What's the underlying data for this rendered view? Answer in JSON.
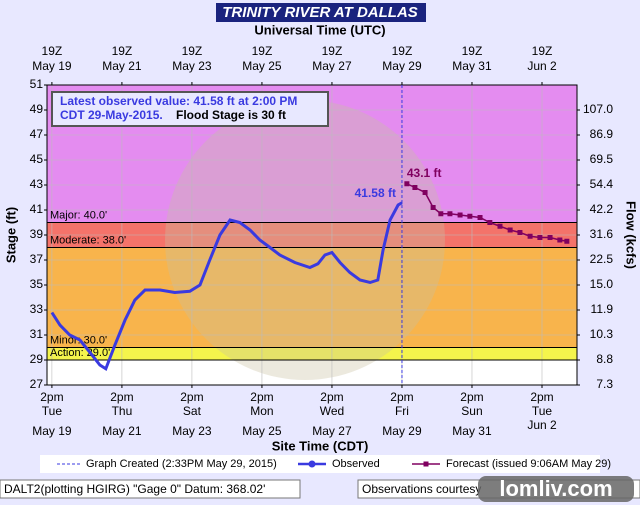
{
  "chart_data": {
    "type": "line",
    "title": "TRINITY RIVER AT DALLAS",
    "top_axis_title": "Universal Time (UTC)",
    "x_axis_title": "Site Time (CDT)",
    "y_axis_title": "Stage (ft)",
    "y2_axis_title": "Flow (kcfs)",
    "xlim": [
      -0.14,
      15.0
    ],
    "xticks": [
      {
        "value": 0,
        "label": "2pm"
      },
      {
        "value": 2,
        "label": "2pm"
      },
      {
        "value": 4,
        "label": "2pm"
      },
      {
        "value": 6,
        "label": "2pm"
      },
      {
        "value": 8,
        "label": "2pm"
      },
      {
        "value": 10,
        "label": "2pm"
      },
      {
        "value": 12,
        "label": "2pm"
      },
      {
        "value": 14,
        "label": "2pm"
      }
    ],
    "xtick_days": [
      "Tue",
      "Thu",
      "Sat",
      "Mon",
      "Wed",
      "Fri",
      "Sun",
      "Tue"
    ],
    "xtick_dates": [
      "May 19",
      "May 21",
      "May 23",
      "May 25",
      "May 27",
      "May 29",
      "May 31",
      "Jun 2"
    ],
    "top_tick_label": "19Z",
    "ylim": [
      27,
      51
    ],
    "yticks": [
      27,
      29,
      31,
      33,
      35,
      37,
      39,
      41,
      43,
      45,
      47,
      49,
      51
    ],
    "y2ticks": [
      {
        "value": 7.3,
        "label": "7.3"
      },
      {
        "value": 8.8,
        "label": "8.8"
      },
      {
        "value": 10.3,
        "label": "10.3"
      },
      {
        "value": 11.9,
        "label": "11.9"
      },
      {
        "value": 15.0,
        "label": "15.0"
      },
      {
        "value": 22.5,
        "label": "22.5"
      },
      {
        "value": 31.6,
        "label": "31.6"
      },
      {
        "value": 42.2,
        "label": "42.2"
      },
      {
        "value": 54.4,
        "label": "54.4"
      },
      {
        "value": 69.5,
        "label": "69.5"
      },
      {
        "value": 86.9,
        "label": "86.9"
      },
      {
        "value": 107.0,
        "label": "107.0"
      }
    ],
    "grid": true,
    "flood_categories": [
      {
        "label": "Major: 40.0'",
        "value": 40,
        "color": "#e48cf0"
      },
      {
        "label": "Moderate: 38.0'",
        "value": 38,
        "color": "#f4736a"
      },
      {
        "label": "Minor: 30.0'",
        "value": 30,
        "color": "#f8b44c"
      },
      {
        "label": "Action: 29.0'",
        "value": 29,
        "color": "#f4f44c"
      }
    ],
    "created_x": 10.0,
    "series": [
      {
        "name": "Observed",
        "color": "#3a3ae0",
        "marker": "circle",
        "x": [
          0,
          0.23,
          0.51,
          0.8,
          1.09,
          1.37,
          1.54,
          1.8,
          2.09,
          2.37,
          2.66,
          3.09,
          3.51,
          3.94,
          4.23,
          4.51,
          4.8,
          5.09,
          5.37,
          5.66,
          5.94,
          6.23,
          6.51,
          6.94,
          7.37,
          7.6,
          7.8,
          8.0,
          8.23,
          8.51,
          8.8,
          9.09,
          9.31,
          9.46,
          9.66,
          9.89,
          10.0
        ],
        "values": [
          32.8,
          31.8,
          31.0,
          30.6,
          29.6,
          28.6,
          28.3,
          30.2,
          32.2,
          33.8,
          34.6,
          34.6,
          34.4,
          34.5,
          35.0,
          37.0,
          39.0,
          40.2,
          40.0,
          39.4,
          38.6,
          38.0,
          37.4,
          36.8,
          36.4,
          36.7,
          37.4,
          37.6,
          36.8,
          36.0,
          35.4,
          35.2,
          35.4,
          37.8,
          40.2,
          41.4,
          41.58
        ]
      },
      {
        "name": "Forecast (issued 9:06AM May 29)",
        "color": "#800060",
        "marker": "square",
        "x": [
          10.14,
          10.37,
          10.66,
          10.89,
          11.11,
          11.37,
          11.66,
          11.94,
          12.23,
          12.51,
          12.8,
          13.09,
          13.37,
          13.66,
          13.94,
          14.23,
          14.51,
          14.71
        ],
        "values": [
          43.1,
          42.8,
          42.4,
          41.2,
          40.7,
          40.7,
          40.6,
          40.5,
          40.4,
          40.0,
          39.7,
          39.4,
          39.2,
          38.9,
          38.8,
          38.8,
          38.6,
          38.5
        ]
      }
    ],
    "annotations": [
      "41.58 ft",
      "43.1 ft"
    ],
    "info_line1": "Latest observed value: 41.58 ft at 2:00 PM",
    "info_line2": "CDT 29-May-2015.",
    "info_line3": "Flood Stage is 30 ft",
    "legend_created": "Graph Created (2:33PM May 29, 2015)",
    "footer_left": "DALT2(plotting HGIRG) \"Gage 0\" Datum: 368.02'",
    "footer_right": "Observations courtesy",
    "watermark": "lomliv.com"
  }
}
